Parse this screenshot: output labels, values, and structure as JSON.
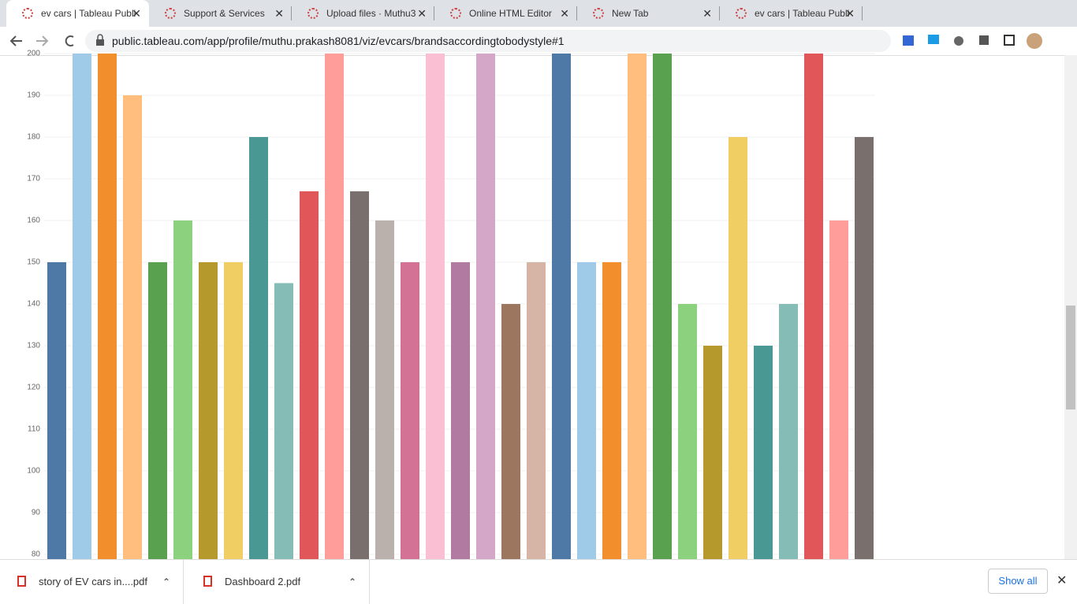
{
  "browser": {
    "tabs": [
      "ev cars | Tableau Publi",
      "Support & Services",
      "Upload files · Muthu3",
      "Online HTML Editor",
      "New Tab",
      "ev cars | Tableau Publi"
    ],
    "url": "public.tableau.com/app/profile/muthu.prakash8081/viz/evcars/brandsaccordingtobodystyle#1",
    "downloads": [
      "story of EV cars in....pdf",
      "Dashboard 2.pdf"
    ],
    "show_all": "Show all"
  },
  "chart_data": {
    "type": "bar",
    "values": [
      150,
      200,
      200,
      190,
      150,
      160,
      150,
      150,
      180,
      145,
      167,
      200,
      167,
      160,
      150,
      200,
      150,
      200,
      140,
      150,
      200,
      150,
      150,
      200,
      200,
      140,
      130,
      180,
      130,
      140,
      200,
      160,
      180
    ],
    "colors": [
      "#4e79a7",
      "#a0cbe8",
      "#f28e2b",
      "#ffbe7d",
      "#59a14f",
      "#8cd17d",
      "#b6992d",
      "#f1ce63",
      "#499894",
      "#86bcb6",
      "#e15759",
      "#ff9d9a",
      "#79706e",
      "#bab0ac",
      "#d37295",
      "#fabfd2",
      "#b07aa1",
      "#d4a6c8",
      "#9d7660",
      "#d7b5a6",
      "#4e79a7",
      "#a0cbe8",
      "#f28e2b",
      "#ffbe7d",
      "#59a14f",
      "#8cd17d",
      "#b6992d",
      "#f1ce63",
      "#499894",
      "#86bcb6",
      "#e15759",
      "#ff9d9a",
      "#79706e"
    ],
    "ylim": [
      80,
      200
    ],
    "yticks": [
      80,
      90,
      100,
      110,
      120,
      130,
      140,
      150,
      160,
      170,
      180,
      190,
      200
    ],
    "grid": true
  }
}
